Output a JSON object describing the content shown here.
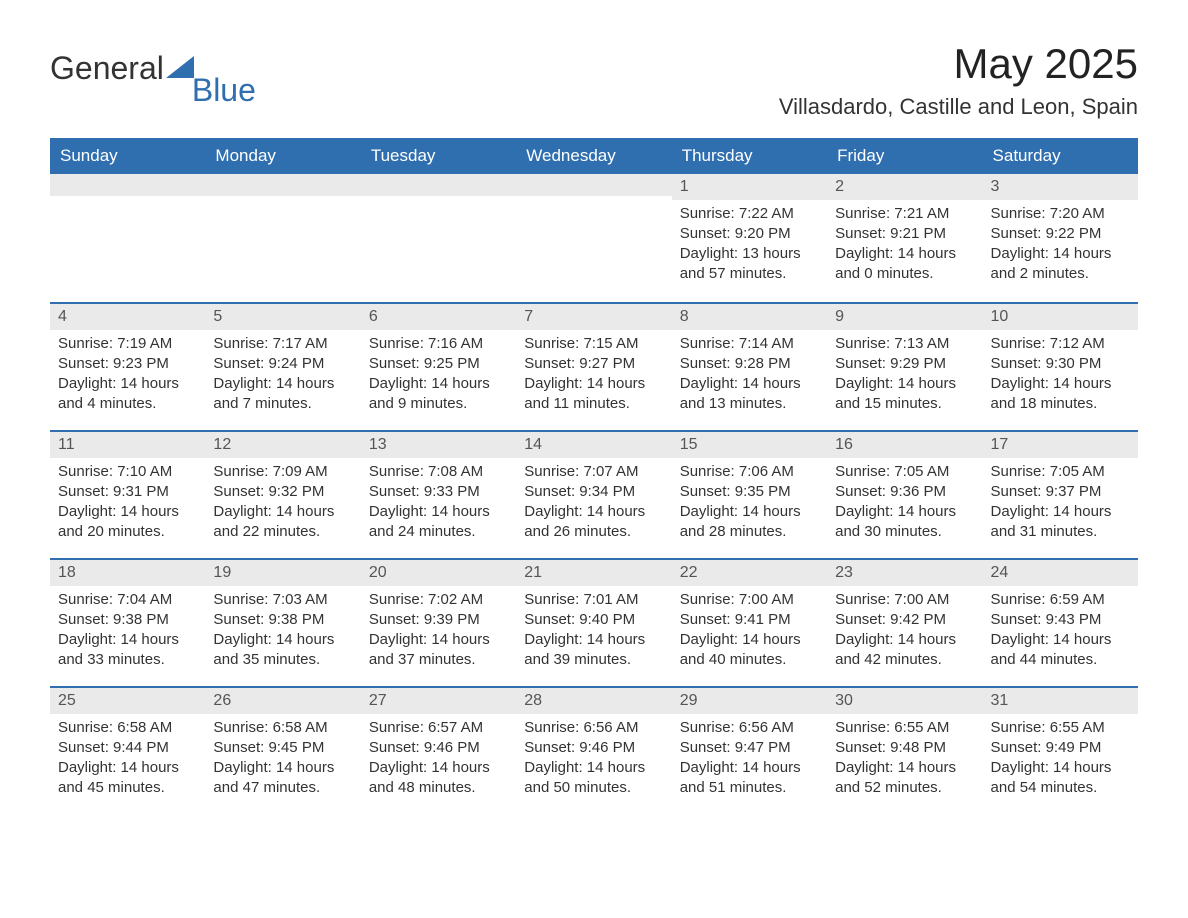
{
  "logo": {
    "general": "General",
    "blue": "Blue",
    "accent_color": "#2f6faf"
  },
  "title": "May 2025",
  "location": "Villasdardo, Castille and Leon, Spain",
  "colors": {
    "header_bg": "#2f6faf",
    "header_text": "#ffffff",
    "daynum_bg": "#eaeaea",
    "text": "#333333",
    "rule": "#2f6faf",
    "page_bg": "#ffffff"
  },
  "typography": {
    "title_fontsize": 42,
    "location_fontsize": 22,
    "dow_fontsize": 17,
    "body_fontsize": 15
  },
  "days_of_week": [
    "Sunday",
    "Monday",
    "Tuesday",
    "Wednesday",
    "Thursday",
    "Friday",
    "Saturday"
  ],
  "weeks": [
    [
      {
        "blank": true
      },
      {
        "blank": true
      },
      {
        "blank": true
      },
      {
        "blank": true
      },
      {
        "n": "1",
        "sunrise": "Sunrise: 7:22 AM",
        "sunset": "Sunset: 9:20 PM",
        "day1": "Daylight: 13 hours",
        "day2": "and 57 minutes."
      },
      {
        "n": "2",
        "sunrise": "Sunrise: 7:21 AM",
        "sunset": "Sunset: 9:21 PM",
        "day1": "Daylight: 14 hours",
        "day2": "and 0 minutes."
      },
      {
        "n": "3",
        "sunrise": "Sunrise: 7:20 AM",
        "sunset": "Sunset: 9:22 PM",
        "day1": "Daylight: 14 hours",
        "day2": "and 2 minutes."
      }
    ],
    [
      {
        "n": "4",
        "sunrise": "Sunrise: 7:19 AM",
        "sunset": "Sunset: 9:23 PM",
        "day1": "Daylight: 14 hours",
        "day2": "and 4 minutes."
      },
      {
        "n": "5",
        "sunrise": "Sunrise: 7:17 AM",
        "sunset": "Sunset: 9:24 PM",
        "day1": "Daylight: 14 hours",
        "day2": "and 7 minutes."
      },
      {
        "n": "6",
        "sunrise": "Sunrise: 7:16 AM",
        "sunset": "Sunset: 9:25 PM",
        "day1": "Daylight: 14 hours",
        "day2": "and 9 minutes."
      },
      {
        "n": "7",
        "sunrise": "Sunrise: 7:15 AM",
        "sunset": "Sunset: 9:27 PM",
        "day1": "Daylight: 14 hours",
        "day2": "and 11 minutes."
      },
      {
        "n": "8",
        "sunrise": "Sunrise: 7:14 AM",
        "sunset": "Sunset: 9:28 PM",
        "day1": "Daylight: 14 hours",
        "day2": "and 13 minutes."
      },
      {
        "n": "9",
        "sunrise": "Sunrise: 7:13 AM",
        "sunset": "Sunset: 9:29 PM",
        "day1": "Daylight: 14 hours",
        "day2": "and 15 minutes."
      },
      {
        "n": "10",
        "sunrise": "Sunrise: 7:12 AM",
        "sunset": "Sunset: 9:30 PM",
        "day1": "Daylight: 14 hours",
        "day2": "and 18 minutes."
      }
    ],
    [
      {
        "n": "11",
        "sunrise": "Sunrise: 7:10 AM",
        "sunset": "Sunset: 9:31 PM",
        "day1": "Daylight: 14 hours",
        "day2": "and 20 minutes."
      },
      {
        "n": "12",
        "sunrise": "Sunrise: 7:09 AM",
        "sunset": "Sunset: 9:32 PM",
        "day1": "Daylight: 14 hours",
        "day2": "and 22 minutes."
      },
      {
        "n": "13",
        "sunrise": "Sunrise: 7:08 AM",
        "sunset": "Sunset: 9:33 PM",
        "day1": "Daylight: 14 hours",
        "day2": "and 24 minutes."
      },
      {
        "n": "14",
        "sunrise": "Sunrise: 7:07 AM",
        "sunset": "Sunset: 9:34 PM",
        "day1": "Daylight: 14 hours",
        "day2": "and 26 minutes."
      },
      {
        "n": "15",
        "sunrise": "Sunrise: 7:06 AM",
        "sunset": "Sunset: 9:35 PM",
        "day1": "Daylight: 14 hours",
        "day2": "and 28 minutes."
      },
      {
        "n": "16",
        "sunrise": "Sunrise: 7:05 AM",
        "sunset": "Sunset: 9:36 PM",
        "day1": "Daylight: 14 hours",
        "day2": "and 30 minutes."
      },
      {
        "n": "17",
        "sunrise": "Sunrise: 7:05 AM",
        "sunset": "Sunset: 9:37 PM",
        "day1": "Daylight: 14 hours",
        "day2": "and 31 minutes."
      }
    ],
    [
      {
        "n": "18",
        "sunrise": "Sunrise: 7:04 AM",
        "sunset": "Sunset: 9:38 PM",
        "day1": "Daylight: 14 hours",
        "day2": "and 33 minutes."
      },
      {
        "n": "19",
        "sunrise": "Sunrise: 7:03 AM",
        "sunset": "Sunset: 9:38 PM",
        "day1": "Daylight: 14 hours",
        "day2": "and 35 minutes."
      },
      {
        "n": "20",
        "sunrise": "Sunrise: 7:02 AM",
        "sunset": "Sunset: 9:39 PM",
        "day1": "Daylight: 14 hours",
        "day2": "and 37 minutes."
      },
      {
        "n": "21",
        "sunrise": "Sunrise: 7:01 AM",
        "sunset": "Sunset: 9:40 PM",
        "day1": "Daylight: 14 hours",
        "day2": "and 39 minutes."
      },
      {
        "n": "22",
        "sunrise": "Sunrise: 7:00 AM",
        "sunset": "Sunset: 9:41 PM",
        "day1": "Daylight: 14 hours",
        "day2": "and 40 minutes."
      },
      {
        "n": "23",
        "sunrise": "Sunrise: 7:00 AM",
        "sunset": "Sunset: 9:42 PM",
        "day1": "Daylight: 14 hours",
        "day2": "and 42 minutes."
      },
      {
        "n": "24",
        "sunrise": "Sunrise: 6:59 AM",
        "sunset": "Sunset: 9:43 PM",
        "day1": "Daylight: 14 hours",
        "day2": "and 44 minutes."
      }
    ],
    [
      {
        "n": "25",
        "sunrise": "Sunrise: 6:58 AM",
        "sunset": "Sunset: 9:44 PM",
        "day1": "Daylight: 14 hours",
        "day2": "and 45 minutes."
      },
      {
        "n": "26",
        "sunrise": "Sunrise: 6:58 AM",
        "sunset": "Sunset: 9:45 PM",
        "day1": "Daylight: 14 hours",
        "day2": "and 47 minutes."
      },
      {
        "n": "27",
        "sunrise": "Sunrise: 6:57 AM",
        "sunset": "Sunset: 9:46 PM",
        "day1": "Daylight: 14 hours",
        "day2": "and 48 minutes."
      },
      {
        "n": "28",
        "sunrise": "Sunrise: 6:56 AM",
        "sunset": "Sunset: 9:46 PM",
        "day1": "Daylight: 14 hours",
        "day2": "and 50 minutes."
      },
      {
        "n": "29",
        "sunrise": "Sunrise: 6:56 AM",
        "sunset": "Sunset: 9:47 PM",
        "day1": "Daylight: 14 hours",
        "day2": "and 51 minutes."
      },
      {
        "n": "30",
        "sunrise": "Sunrise: 6:55 AM",
        "sunset": "Sunset: 9:48 PM",
        "day1": "Daylight: 14 hours",
        "day2": "and 52 minutes."
      },
      {
        "n": "31",
        "sunrise": "Sunrise: 6:55 AM",
        "sunset": "Sunset: 9:49 PM",
        "day1": "Daylight: 14 hours",
        "day2": "and 54 minutes."
      }
    ]
  ]
}
